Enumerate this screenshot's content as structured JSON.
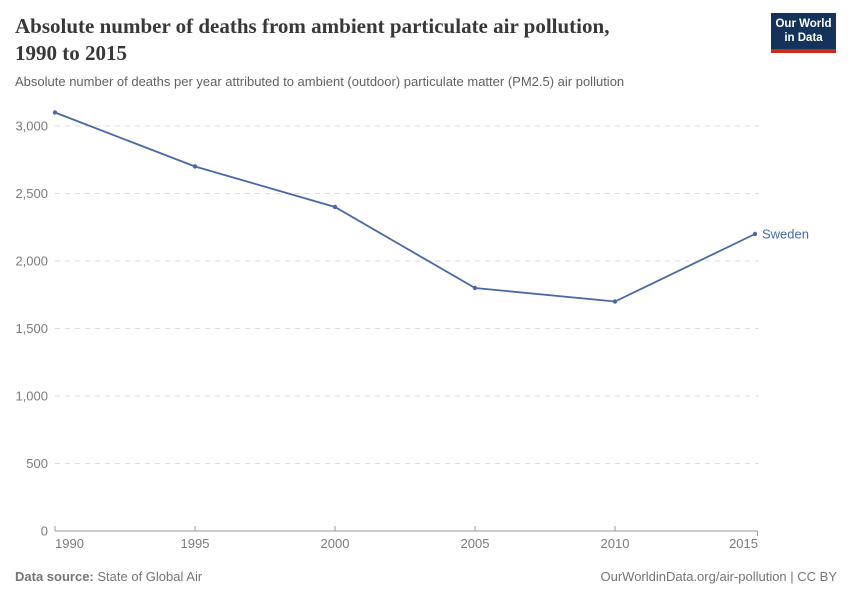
{
  "header": {
    "title_line1": "Absolute number of deaths from ambient particulate air pollution,",
    "title_line2": "1990 to 2015",
    "subtitle": "Absolute number of deaths per year attributed to ambient (outdoor) particulate matter (PM2.5) air pollution",
    "logo": {
      "line1": "Our World",
      "line2": "in Data",
      "bg_color": "#13335a",
      "accent_color": "#cc2a1d"
    }
  },
  "chart_data": {
    "type": "line",
    "title": "Absolute number of deaths from ambient particulate air pollution, 1990 to 2015",
    "subtitle": "Absolute number of deaths per year attributed to ambient (outdoor) particulate matter (PM2.5) air pollution",
    "x": [
      1990,
      1995,
      2000,
      2005,
      2010,
      2015
    ],
    "series": [
      {
        "name": "Sweden",
        "color": "#4868a7",
        "values": [
          3100,
          2700,
          2400,
          1800,
          1700,
          2200
        ]
      }
    ],
    "xlabel": "",
    "ylabel": "",
    "xlim": [
      1990,
      2015
    ],
    "ylim": [
      0,
      3100
    ],
    "y_ticks": [
      0,
      500,
      1000,
      1500,
      2000,
      2500,
      3000
    ],
    "x_ticks": [
      1990,
      1995,
      2000,
      2005,
      2010,
      2015
    ],
    "grid": "horizontal-dashed",
    "legend_position": "end-of-line",
    "end_label": "Sweden"
  },
  "footer": {
    "source_label": "Data source:",
    "source_value": "State of Global Air",
    "attribution": "OurWorldinData.org/air-pollution | CC BY"
  },
  "colors": {
    "line": "#4868a7",
    "grid": "#dcdcdc",
    "axis": "#999999",
    "tick_label": "#7b7b7b"
  }
}
